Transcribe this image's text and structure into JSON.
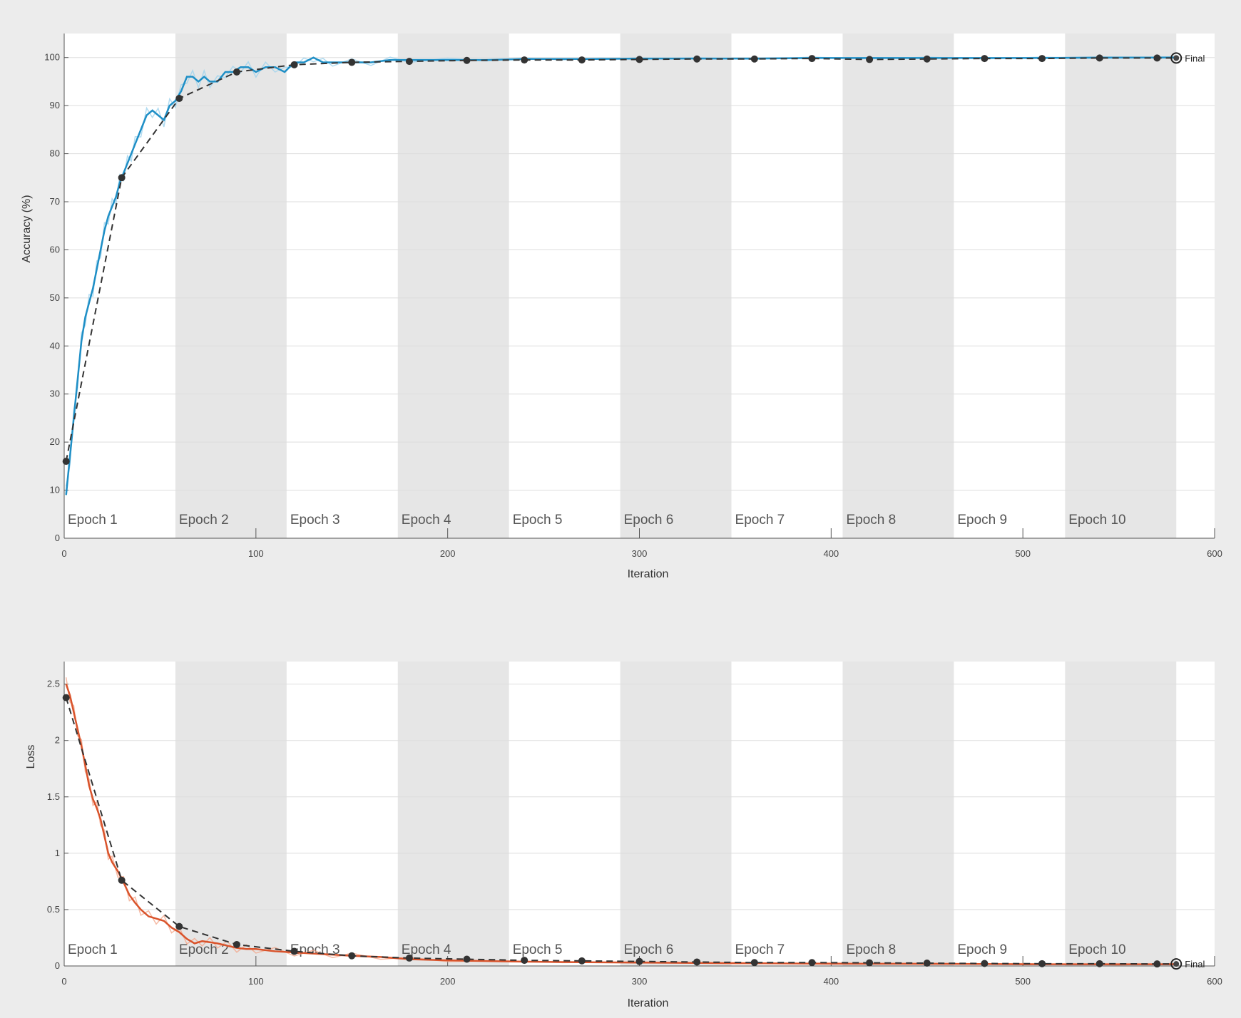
{
  "colors": {
    "background": "#ececec",
    "plot_bg": "#ffffff",
    "epoch_shade": "#e6e6e6",
    "grid": "#dddddd",
    "accuracy_line": "#1f8fc6",
    "accuracy_raw": "#9fd3ee",
    "loss_line": "#d9532b",
    "loss_raw": "#f2a88c",
    "validation": "#333333"
  },
  "chart_data": [
    {
      "type": "line",
      "xlabel": "Iteration",
      "ylabel": "Accuracy (%)",
      "xlim": [
        0,
        600
      ],
      "ylim": [
        0,
        105
      ],
      "xticks": [
        0,
        100,
        200,
        300,
        400,
        500,
        600
      ],
      "yticks": [
        0,
        10,
        20,
        30,
        40,
        50,
        60,
        70,
        80,
        90,
        100
      ],
      "epoch_length": 58,
      "epochs": [
        "Epoch 1",
        "Epoch 2",
        "Epoch 3",
        "Epoch 4",
        "Epoch 5",
        "Epoch 6",
        "Epoch 7",
        "Epoch 8",
        "Epoch 9",
        "Epoch 10"
      ],
      "final_label": "Final",
      "series": [
        {
          "role": "training",
          "x": [
            1,
            3,
            5,
            7,
            9,
            11,
            13,
            15,
            17,
            19,
            21,
            23,
            25,
            27,
            29,
            31,
            33,
            35,
            37,
            40,
            43,
            46,
            49,
            52,
            55,
            58,
            61,
            64,
            67,
            70,
            73,
            76,
            80,
            84,
            88,
            92,
            96,
            100,
            105,
            110,
            115,
            120,
            125,
            130,
            135,
            140,
            150,
            160,
            170,
            180,
            200,
            220,
            240,
            260,
            280,
            300,
            330,
            360,
            390,
            420,
            450,
            480,
            510,
            540,
            580
          ],
          "y": [
            9,
            17,
            25,
            33,
            41,
            46,
            49,
            52,
            56,
            60,
            64,
            67,
            69,
            71,
            74,
            76,
            78,
            80,
            82,
            85,
            88,
            89,
            88,
            87,
            90,
            91,
            93,
            96,
            96,
            95,
            96,
            95,
            95,
            97,
            97,
            98,
            98,
            97,
            98,
            98,
            97,
            99,
            99,
            100,
            99,
            99,
            99,
            99,
            99.5,
            99.5,
            99.5,
            99.5,
            99.7,
            99.7,
            99.7,
            99.8,
            99.8,
            99.8,
            99.9,
            99.9,
            99.9,
            99.9,
            99.9,
            100,
            100
          ]
        },
        {
          "role": "validation",
          "x": [
            1,
            30,
            60,
            90,
            120,
            150,
            180,
            210,
            240,
            270,
            300,
            330,
            360,
            390,
            420,
            450,
            480,
            510,
            540,
            570,
            580
          ],
          "y": [
            16,
            75,
            91.5,
            97,
            98.5,
            99,
            99.2,
            99.4,
            99.5,
            99.5,
            99.6,
            99.7,
            99.7,
            99.8,
            99.6,
            99.7,
            99.8,
            99.8,
            99.9,
            99.9,
            99.9
          ]
        }
      ]
    },
    {
      "type": "line",
      "xlabel": "Iteration",
      "ylabel": "Loss",
      "xlim": [
        0,
        600
      ],
      "ylim": [
        0,
        2.7
      ],
      "xticks": [
        0,
        100,
        200,
        300,
        400,
        500,
        600
      ],
      "yticks": [
        0,
        0.5,
        1,
        1.5,
        2,
        2.5
      ],
      "epoch_length": 58,
      "epochs": [
        "Epoch 1",
        "Epoch 2",
        "Epoch 3",
        "Epoch 4",
        "Epoch 5",
        "Epoch 6",
        "Epoch 7",
        "Epoch 8",
        "Epoch 9",
        "Epoch 10"
      ],
      "final_label": "Final",
      "series": [
        {
          "role": "training",
          "x": [
            1,
            3,
            5,
            7,
            9,
            11,
            13,
            15,
            17,
            19,
            21,
            23,
            25,
            28,
            31,
            34,
            37,
            40,
            44,
            48,
            52,
            56,
            60,
            64,
            68,
            72,
            76,
            80,
            85,
            90,
            95,
            100,
            110,
            120,
            130,
            140,
            150,
            165,
            180,
            200,
            230,
            260,
            300,
            350,
            400,
            450,
            500,
            550,
            580
          ],
          "y": [
            2.5,
            2.4,
            2.25,
            2.1,
            1.95,
            1.78,
            1.6,
            1.48,
            1.4,
            1.3,
            1.15,
            1.0,
            0.92,
            0.84,
            0.74,
            0.63,
            0.56,
            0.5,
            0.44,
            0.42,
            0.4,
            0.34,
            0.3,
            0.24,
            0.2,
            0.22,
            0.21,
            0.2,
            0.18,
            0.16,
            0.15,
            0.15,
            0.13,
            0.12,
            0.11,
            0.1,
            0.09,
            0.08,
            0.06,
            0.05,
            0.04,
            0.035,
            0.03,
            0.025,
            0.02,
            0.02,
            0.015,
            0.015,
            0.015
          ]
        },
        {
          "role": "validation",
          "x": [
            1,
            30,
            60,
            90,
            120,
            150,
            180,
            210,
            240,
            270,
            300,
            330,
            360,
            390,
            420,
            450,
            480,
            510,
            540,
            570,
            580
          ],
          "y": [
            2.38,
            0.76,
            0.35,
            0.19,
            0.13,
            0.09,
            0.07,
            0.06,
            0.05,
            0.045,
            0.04,
            0.035,
            0.03,
            0.03,
            0.028,
            0.025,
            0.022,
            0.02,
            0.02,
            0.018,
            0.018
          ]
        }
      ]
    }
  ]
}
